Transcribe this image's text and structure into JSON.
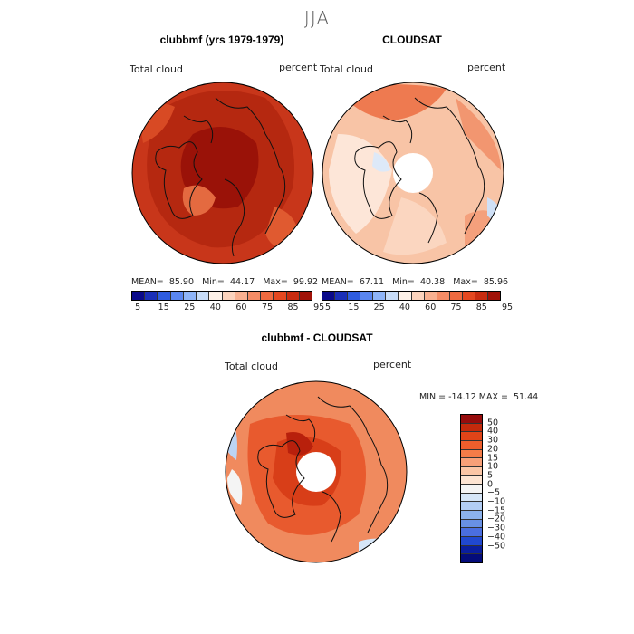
{
  "page_title": "JJA",
  "panels": [
    {
      "title": "clubbmf (yrs 1979-1979)",
      "left_label": "Total cloud",
      "right_label": "percent",
      "stats": {
        "mean_label": "MEAN=",
        "mean": "85.90",
        "min_label": "Min=",
        "min": "44.17",
        "max_label": "Max=",
        "max": "99.92"
      }
    },
    {
      "title": "CLOUDSAT",
      "left_label": "Total cloud",
      "right_label": "percent",
      "stats": {
        "mean_label": "MEAN=",
        "mean": "67.11",
        "min_label": "Min=",
        "min": "40.38",
        "max_label": "Max=",
        "max": "85.96"
      }
    },
    {
      "title": "clubbmf - CLOUDSAT",
      "left_label": "Total cloud",
      "right_label": "percent",
      "minmax": "MIN = -14.12 MAX =  51.44"
    }
  ],
  "colorbar_abs": {
    "colors": [
      "#0a0a8a",
      "#1a2fb8",
      "#2e5ce0",
      "#5a86f0",
      "#8eb4f8",
      "#c8dcf8",
      "#fdf1e8",
      "#fbd3bd",
      "#f8b090",
      "#f48c66",
      "#ee6a40",
      "#e44820",
      "#c82c10",
      "#a01208"
    ],
    "ticks": [
      "5",
      "15",
      "25",
      "40",
      "60",
      "75",
      "85",
      "95"
    ]
  },
  "colorbar_diff": {
    "colors": [
      "#960c0c",
      "#c42a0c",
      "#e04418",
      "#ee5e2c",
      "#f47c48",
      "#f8a078",
      "#fbc6a6",
      "#fde4d2",
      "#f4f4f4",
      "#d6e6f8",
      "#b2cdf4",
      "#8cb2ec",
      "#6890e4",
      "#4a6ee0",
      "#2048d0",
      "#0a1e9e",
      "#040c7a"
    ],
    "ticks": [
      "50",
      "40",
      "30",
      "20",
      "15",
      "10",
      "5",
      "0",
      "−5",
      "−10",
      "−15",
      "−20",
      "−30",
      "−40",
      "−50"
    ]
  },
  "maps": [
    {
      "region": "north-polar",
      "fill": "#c8361a",
      "core": "#a0160a"
    },
    {
      "region": "north-polar",
      "fill": "#f6b898",
      "core": "#fde8dc"
    },
    {
      "region": "north-polar",
      "fill": "#ee6a40",
      "core": "#d24a24"
    }
  ]
}
